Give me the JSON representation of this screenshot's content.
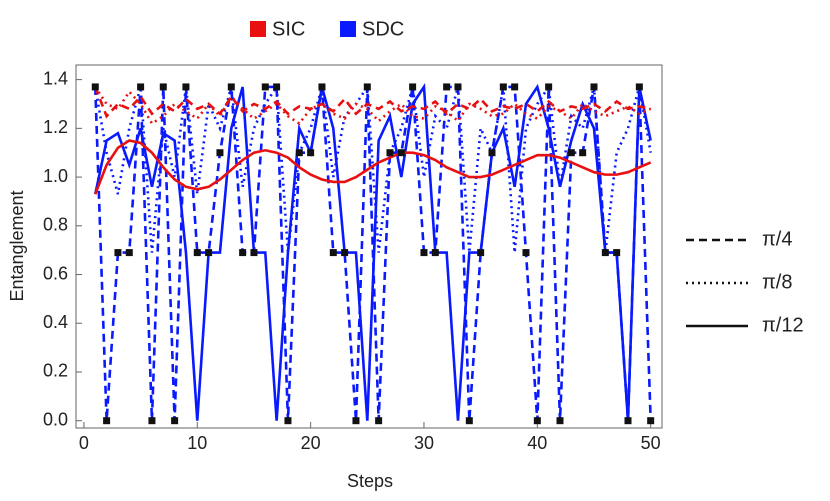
{
  "chart_data": {
    "type": "line",
    "xlabel": "Steps",
    "ylabel": "Entanglement",
    "xlim": [
      -0.7,
      51
    ],
    "ylim": [
      -0.03,
      1.46
    ],
    "xticks": [
      0,
      10,
      20,
      30,
      40,
      50
    ],
    "yticks": [
      {
        "value": 0,
        "label": "0.0"
      },
      {
        "value": 0.2,
        "label": "0.2"
      },
      {
        "value": 0.4,
        "label": "0.4"
      },
      {
        "value": 0.6,
        "label": "0.6"
      },
      {
        "value": 0.8,
        "label": "0.8"
      },
      {
        "value": 1,
        "label": "1.0"
      },
      {
        "value": 1.2,
        "label": "1.2"
      },
      {
        "value": 1.4,
        "label": "1.4"
      }
    ],
    "line_styles": [
      {
        "name": "π/4",
        "dash": "8,5"
      },
      {
        "name": "π/8",
        "dash": "2,4"
      },
      {
        "name": "π/12",
        "dash": "none"
      }
    ],
    "x": [
      1,
      2,
      3,
      4,
      5,
      6,
      7,
      8,
      9,
      10,
      11,
      12,
      13,
      14,
      15,
      16,
      17,
      18,
      19,
      20,
      21,
      22,
      23,
      24,
      25,
      26,
      27,
      28,
      29,
      30,
      31,
      32,
      33,
      34,
      35,
      36,
      37,
      38,
      39,
      40,
      41,
      42,
      43,
      44,
      45,
      46,
      47,
      48,
      49,
      50
    ],
    "series": [
      {
        "name": "SDC",
        "color": "#0a1aff",
        "marker_color": "#111111",
        "lines": [
          [
            1.37,
            0,
            0.69,
            0.69,
            1.37,
            0,
            1.37,
            0,
            1.37,
            0.69,
            0.69,
            1.1,
            1.37,
            0.69,
            0.69,
            1.37,
            1.37,
            0,
            1.1,
            1.1,
            1.37,
            0.69,
            0.69,
            0,
            1.37,
            0,
            1.1,
            1.1,
            1.37,
            0.69,
            0.69,
            1.37,
            1.37,
            0,
            0.69,
            1.1,
            1.37,
            1.37,
            0.69,
            0,
            1.37,
            0,
            1.1,
            1.1,
            1.37,
            0.69,
            0.69,
            0,
            1.37,
            0
          ],
          [
            1.37,
            1.1,
            0.93,
            1.2,
            1.37,
            0.69,
            1.2,
            1.0,
            1.37,
            0.93,
            1.3,
            1.2,
            1.37,
            0.96,
            1.2,
            1.3,
            1.37,
            0.69,
            1.1,
            1.2,
            1.37,
            1.0,
            1.25,
            1.3,
            1.37,
            0.69,
            1.1,
            1.2,
            1.37,
            1.0,
            1.25,
            1.2,
            1.37,
            0.69,
            1.2,
            1.1,
            1.37,
            0.69,
            1.2,
            1.3,
            1.37,
            0.96,
            1.25,
            1.2,
            1.37,
            0.69,
            1.1,
            1.2,
            1.37,
            1.1
          ],
          [
            0.93,
            1.15,
            1.18,
            1.05,
            1.2,
            0.96,
            1.18,
            1.15,
            0.69,
            0,
            0.69,
            0.69,
            1.2,
            1.37,
            0.69,
            0.69,
            0,
            0.69,
            1.2,
            1.1,
            1.37,
            1.2,
            0.69,
            0.69,
            0,
            1.15,
            1.25,
            1.0,
            1.3,
            1.37,
            0.69,
            0.69,
            0,
            0.69,
            0.69,
            1.1,
            1.2,
            0.96,
            1.3,
            1.37,
            1.2,
            0.96,
            1.15,
            1.3,
            1.2,
            0.69,
            0.69,
            0,
            1.37,
            1.15
          ]
        ]
      },
      {
        "name": "SIC",
        "color": "#e81010",
        "lines": [
          [
            1.37,
            1.25,
            1.3,
            1.28,
            1.33,
            1.26,
            1.3,
            1.27,
            1.32,
            1.28,
            1.3,
            1.26,
            1.33,
            1.27,
            1.3,
            1.28,
            1.31,
            1.26,
            1.29,
            1.28,
            1.3,
            1.27,
            1.32,
            1.26,
            1.3,
            1.28,
            1.31,
            1.27,
            1.29,
            1.28,
            1.31,
            1.26,
            1.3,
            1.28,
            1.32,
            1.27,
            1.29,
            1.28,
            1.3,
            1.27,
            1.31,
            1.27,
            1.29,
            1.28,
            1.3,
            1.27,
            1.31,
            1.28,
            1.29,
            1.28
          ],
          [
            1.37,
            1.3,
            1.28,
            1.35,
            1.3,
            1.22,
            1.25,
            1.3,
            1.27,
            1.24,
            1.3,
            1.25,
            1.33,
            1.28,
            1.24,
            1.27,
            1.3,
            1.25,
            1.22,
            1.28,
            1.3,
            1.26,
            1.24,
            1.3,
            1.28,
            1.23,
            1.27,
            1.3,
            1.25,
            1.24,
            1.29,
            1.27,
            1.23,
            1.3,
            1.28,
            1.25,
            1.26,
            1.3,
            1.26,
            1.24,
            1.29,
            1.27,
            1.24,
            1.3,
            1.27,
            1.25,
            1.27,
            1.29,
            1.26,
            1.28
          ],
          [
            0.93,
            1.05,
            1.12,
            1.15,
            1.14,
            1.1,
            1.04,
            0.99,
            0.96,
            0.95,
            0.96,
            0.99,
            1.03,
            1.07,
            1.1,
            1.11,
            1.1,
            1.08,
            1.04,
            1.01,
            0.99,
            0.98,
            0.98,
            1.0,
            1.03,
            1.06,
            1.08,
            1.1,
            1.1,
            1.09,
            1.07,
            1.04,
            1.02,
            1.0,
            1.0,
            1.01,
            1.03,
            1.05,
            1.07,
            1.09,
            1.09,
            1.08,
            1.06,
            1.04,
            1.02,
            1.01,
            1.01,
            1.02,
            1.04,
            1.06
          ]
        ]
      }
    ]
  }
}
